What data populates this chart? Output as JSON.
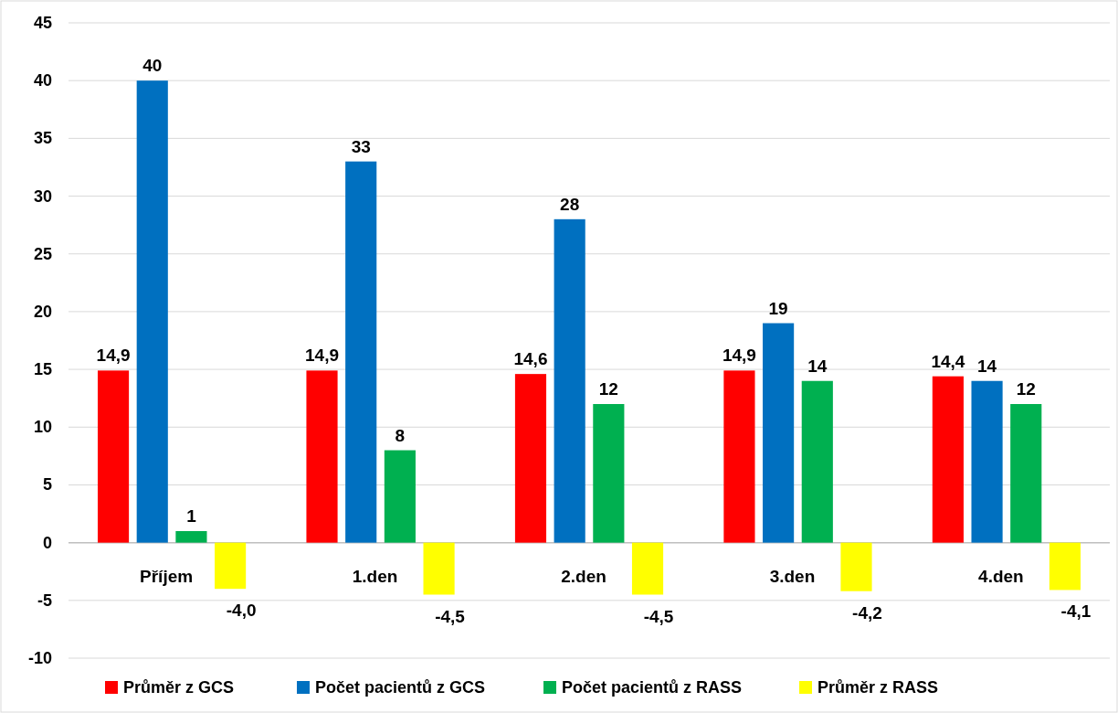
{
  "chart_data": {
    "type": "bar",
    "categories": [
      "Příjem",
      "1.den",
      "2.den",
      "3.den",
      "4.den"
    ],
    "series": [
      {
        "name": "Průměr z GCS",
        "color": "#ff0000",
        "values": [
          14.9,
          14.9,
          14.6,
          14.9,
          14.4
        ],
        "value_labels": [
          "14,9",
          "14,9",
          "14,6",
          "14,9",
          "14,4"
        ]
      },
      {
        "name": "Počet pacientů z GCS",
        "color": "#0070c0",
        "values": [
          40,
          33,
          28,
          19,
          14
        ],
        "value_labels": [
          "40",
          "33",
          "28",
          "19",
          "14"
        ]
      },
      {
        "name": "Počet pacientů z RASS",
        "color": "#00b050",
        "values": [
          1,
          8,
          12,
          14,
          12
        ],
        "value_labels": [
          "1",
          "8",
          "12",
          "14",
          "12"
        ]
      },
      {
        "name": "Průměr z RASS",
        "color": "#ffff00",
        "values": [
          -4.0,
          -4.5,
          -4.5,
          -4.2,
          -4.1
        ],
        "value_labels": [
          "-4,0",
          "-4,5",
          "-4,5",
          "-4,2",
          "-4,1"
        ]
      }
    ],
    "ylim": [
      -10,
      45
    ],
    "yticks": [
      -10,
      -5,
      0,
      5,
      10,
      15,
      20,
      25,
      30,
      35,
      40,
      45
    ],
    "grid": "y",
    "legend": "bottom"
  }
}
